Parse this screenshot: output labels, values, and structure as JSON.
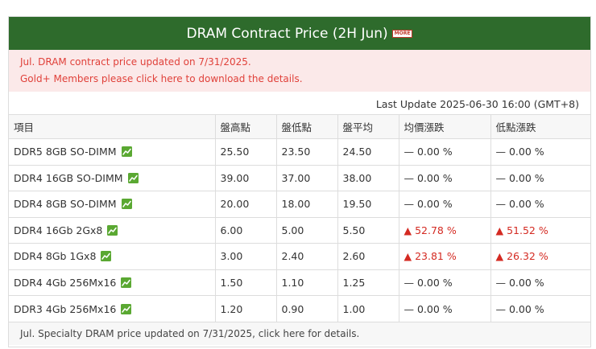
{
  "header": {
    "title": "DRAM Contract Price (2H Jun)",
    "more_label": "MORE"
  },
  "notice": {
    "line1": "Jul. DRAM contract price updated on 7/31/2025.",
    "line2": "Gold+ Members please click here to download the details."
  },
  "last_update": "Last Update 2025-06-30 16:00 (GMT+8)",
  "table": {
    "columns": [
      "項目",
      "盤高點",
      "盤低點",
      "盤平均",
      "均價漲跌",
      "低點漲跌"
    ],
    "rows": [
      {
        "item": "DDR5 8GB SO-DIMM",
        "high": "25.50",
        "low": "23.50",
        "avg": "24.50",
        "avg_change": "— 0.00 %",
        "low_change": "— 0.00 %",
        "avg_dir": "flat",
        "low_dir": "flat"
      },
      {
        "item": "DDR4 16GB SO-DIMM",
        "high": "39.00",
        "low": "37.00",
        "avg": "38.00",
        "avg_change": "— 0.00 %",
        "low_change": "— 0.00 %",
        "avg_dir": "flat",
        "low_dir": "flat"
      },
      {
        "item": "DDR4 8GB SO-DIMM",
        "high": "20.00",
        "low": "18.00",
        "avg": "19.50",
        "avg_change": "— 0.00 %",
        "low_change": "— 0.00 %",
        "avg_dir": "flat",
        "low_dir": "flat"
      },
      {
        "item": "DDR4 16Gb 2Gx8",
        "high": "6.00",
        "low": "5.00",
        "avg": "5.50",
        "avg_change": "▲ 52.78 %",
        "low_change": "▲ 51.52 %",
        "avg_dir": "up",
        "low_dir": "up"
      },
      {
        "item": "DDR4 8Gb 1Gx8",
        "high": "3.00",
        "low": "2.40",
        "avg": "2.60",
        "avg_change": "▲ 23.81 %",
        "low_change": "▲ 26.32 %",
        "avg_dir": "up",
        "low_dir": "up"
      },
      {
        "item": "DDR4 4Gb 256Mx16",
        "high": "1.50",
        "low": "1.10",
        "avg": "1.25",
        "avg_change": "— 0.00 %",
        "low_change": "— 0.00 %",
        "avg_dir": "flat",
        "low_dir": "flat"
      },
      {
        "item": "DDR3 4Gb 256Mx16",
        "high": "1.20",
        "low": "0.90",
        "avg": "1.00",
        "avg_change": "— 0.00 %",
        "low_change": "— 0.00 %",
        "avg_dir": "flat",
        "low_dir": "flat"
      }
    ]
  },
  "footer": {
    "text": "Jul. Specialty DRAM price updated on 7/31/2025, click here for details."
  },
  "colors": {
    "header_bg": "#2e6b2c",
    "notice_bg": "#fbe9e9",
    "notice_text": "#e0413a",
    "up": "#d42a22",
    "trend_icon": "#5aa832"
  },
  "icons": {
    "trend": "line-chart-icon"
  }
}
